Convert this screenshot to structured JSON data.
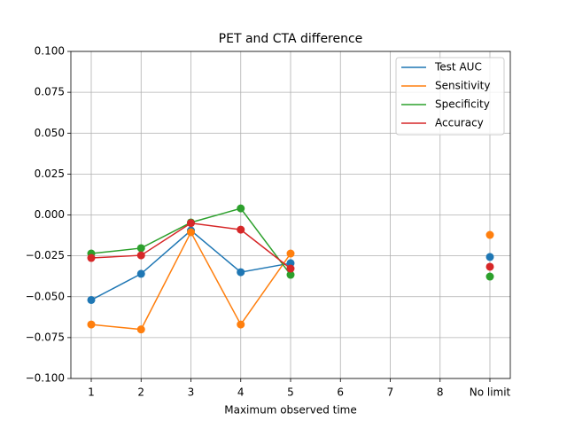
{
  "chart_data": {
    "type": "line",
    "title": "PET and CTA difference",
    "x_label": "Maximum observed time",
    "categories": [
      "1",
      "2",
      "3",
      "4",
      "5",
      "6",
      "7",
      "8",
      "No limit"
    ],
    "series": [
      {
        "name": "Test AUC",
        "color": "#1f77b4",
        "values": [
          -0.052,
          -0.036,
          -0.0095,
          -0.035,
          -0.0295,
          null,
          null,
          null,
          -0.0257
        ]
      },
      {
        "name": "Sensitivity",
        "color": "#ff7f0e",
        "values": [
          -0.067,
          -0.07,
          -0.0106,
          -0.067,
          -0.0236,
          null,
          null,
          null,
          -0.0122
        ]
      },
      {
        "name": "Specificity",
        "color": "#2ca02c",
        "values": [
          -0.0236,
          -0.0203,
          -0.0046,
          0.004,
          -0.0366,
          null,
          null,
          null,
          -0.0377
        ]
      },
      {
        "name": "Accuracy",
        "color": "#d62728",
        "values": [
          -0.0263,
          -0.0247,
          -0.005,
          -0.009,
          -0.0328,
          null,
          null,
          null,
          -0.0317
        ]
      }
    ],
    "ylim": [
      -0.1,
      0.1
    ],
    "yticks": [
      {
        "value": -0.1,
        "label": "−0.100"
      },
      {
        "value": -0.075,
        "label": "−0.075"
      },
      {
        "value": -0.05,
        "label": "−0.050"
      },
      {
        "value": -0.025,
        "label": "−0.025"
      },
      {
        "value": 0,
        "label": "0.000"
      },
      {
        "value": 0.025,
        "label": "0.025"
      },
      {
        "value": 0.05,
        "label": "0.050"
      },
      {
        "value": 0.075,
        "label": "0.075"
      },
      {
        "value": 0.1,
        "label": "0.100"
      }
    ],
    "grid": true,
    "legend": "upper right"
  }
}
